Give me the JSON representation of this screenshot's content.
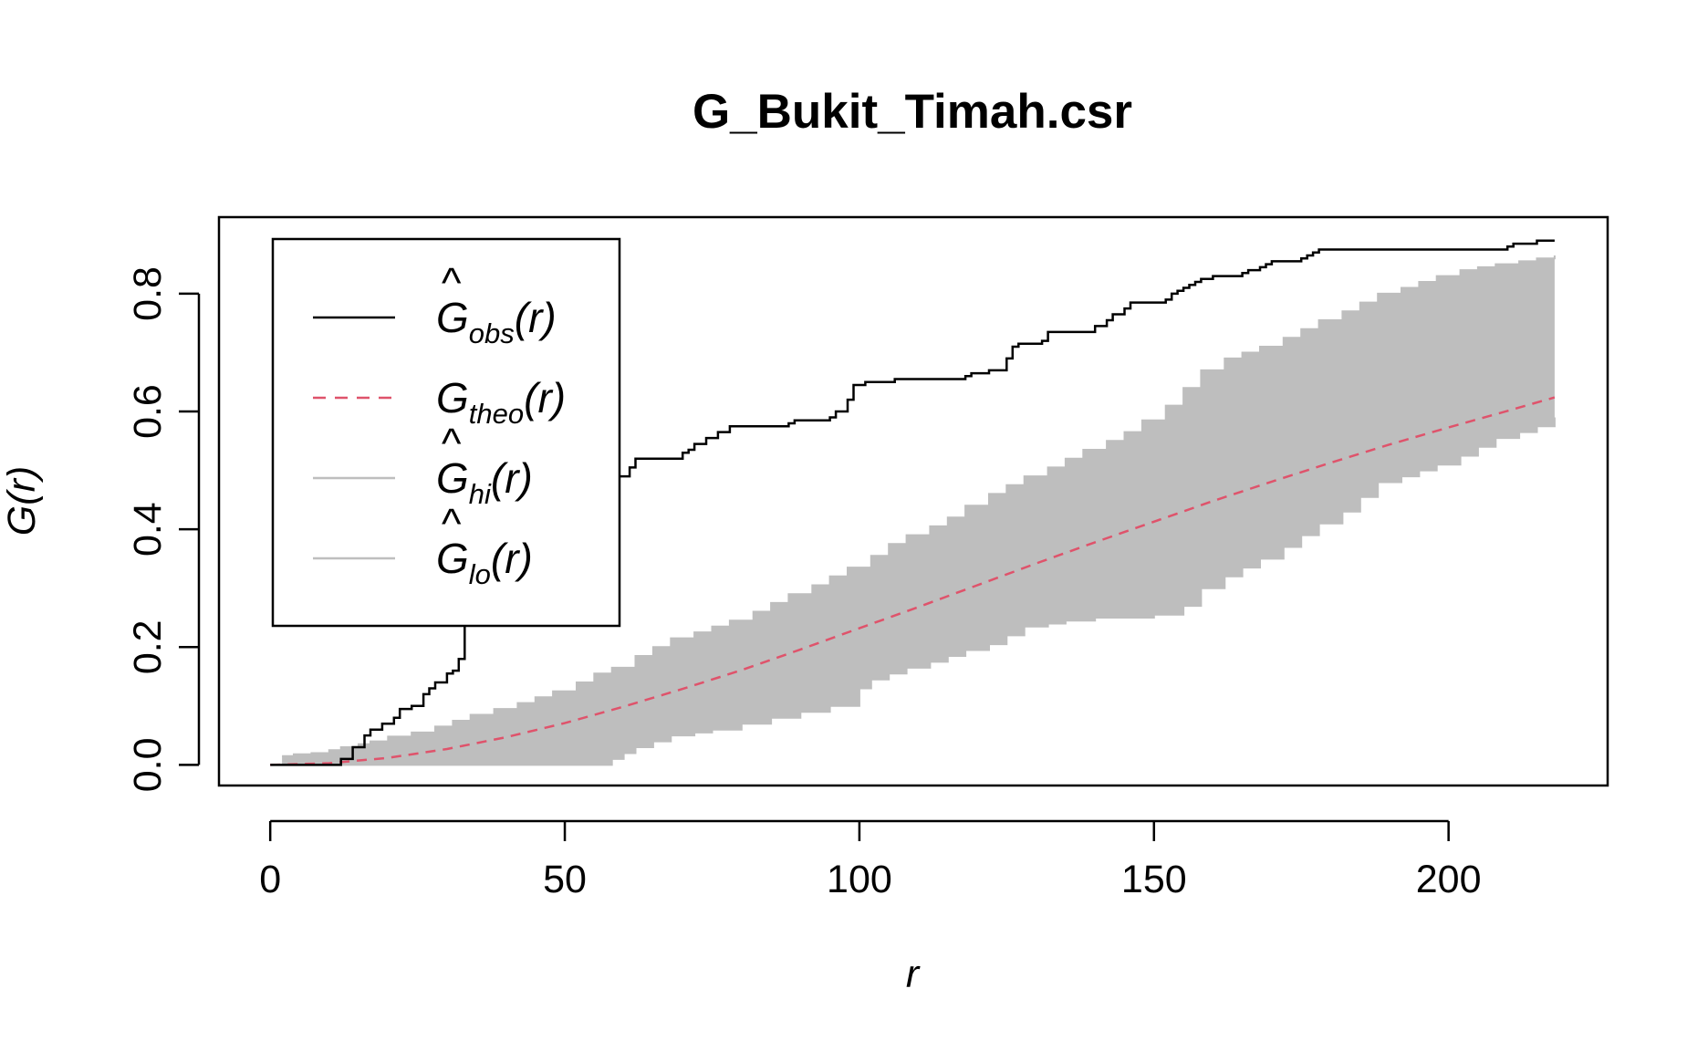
{
  "chart_data": {
    "type": "line",
    "title": "G_Bukit_Timah.csr",
    "xlabel": "r",
    "ylabel": "G(r)",
    "xlim": [
      -8.7,
      227
    ],
    "ylim": [
      -0.035,
      0.93
    ],
    "x_ticks": [
      0,
      50,
      100,
      150,
      200
    ],
    "y_ticks": [
      0.0,
      0.2,
      0.4,
      0.6,
      0.8
    ],
    "x_tick_labels": [
      "0",
      "50",
      "100",
      "150",
      "200"
    ],
    "y_tick_labels": [
      "0.0",
      "0.2",
      "0.4",
      "0.6",
      "0.8"
    ],
    "legend_position": "top-left",
    "legend": [
      {
        "key": "obs",
        "main": "G",
        "hat": "^",
        "sub": "obs",
        "arg": "(r)",
        "color": "#000000",
        "dash": "none"
      },
      {
        "key": "theo",
        "main": "G",
        "hat": "",
        "sub": "theo",
        "arg": "(r)",
        "color": "#DF536B",
        "dash": "14 10"
      },
      {
        "key": "hi",
        "main": "G",
        "hat": "^",
        "sub": "hi",
        "arg": "(r)",
        "color": "#BEBEBE",
        "dash": "none"
      },
      {
        "key": "lo",
        "main": "G",
        "hat": "^",
        "sub": "lo",
        "arg": "(r)",
        "color": "#BEBEBE",
        "dash": "none"
      }
    ],
    "colors": {
      "obs": "#000000",
      "theo": "#DF536B",
      "envelope": "#BEBEBE"
    },
    "series": [
      {
        "name": "Ĝobs(r)",
        "step": true,
        "x": [
          0,
          12,
          14,
          16,
          17,
          19,
          21,
          22,
          24,
          26,
          27,
          28,
          30,
          31,
          32,
          33,
          34,
          35,
          36,
          38,
          40,
          42,
          44,
          46,
          47,
          48,
          50,
          51,
          52,
          54,
          56,
          58,
          59,
          61,
          62,
          64,
          70,
          71,
          72,
          74,
          76,
          78,
          79,
          80,
          88,
          89,
          95,
          96,
          98,
          99,
          101,
          105,
          106,
          118,
          119,
          122,
          125,
          126,
          127,
          131,
          132,
          134,
          140,
          142,
          143,
          145,
          146,
          152,
          153,
          154,
          155,
          156,
          157,
          158,
          159,
          160,
          165,
          166,
          168,
          169,
          170,
          175,
          176,
          177,
          178,
          210,
          211,
          215,
          218
        ],
        "y": [
          0,
          0.01,
          0.03,
          0.05,
          0.06,
          0.07,
          0.08,
          0.095,
          0.1,
          0.12,
          0.13,
          0.14,
          0.155,
          0.16,
          0.18,
          0.24,
          0.25,
          0.27,
          0.29,
          0.3,
          0.31,
          0.325,
          0.335,
          0.345,
          0.36,
          0.365,
          0.37,
          0.38,
          0.4,
          0.43,
          0.44,
          0.47,
          0.49,
          0.505,
          0.52,
          0.52,
          0.53,
          0.535,
          0.545,
          0.555,
          0.565,
          0.575,
          0.575,
          0.575,
          0.58,
          0.585,
          0.59,
          0.6,
          0.62,
          0.645,
          0.65,
          0.65,
          0.655,
          0.66,
          0.665,
          0.67,
          0.69,
          0.71,
          0.715,
          0.72,
          0.735,
          0.735,
          0.745,
          0.755,
          0.765,
          0.775,
          0.785,
          0.79,
          0.8,
          0.805,
          0.81,
          0.815,
          0.82,
          0.825,
          0.825,
          0.83,
          0.835,
          0.84,
          0.845,
          0.85,
          0.855,
          0.86,
          0.865,
          0.87,
          0.875,
          0.88,
          0.885,
          0.89,
          0.89
        ]
      },
      {
        "name": "Gtheo(r)",
        "x": [
          0,
          10,
          20,
          30,
          40,
          50,
          60,
          70,
          80,
          90,
          100,
          110,
          120,
          130,
          140,
          150,
          160,
          170,
          180,
          190,
          200,
          210,
          218
        ],
        "y": [
          0,
          0.003,
          0.012,
          0.027,
          0.047,
          0.071,
          0.099,
          0.129,
          0.161,
          0.196,
          0.232,
          0.268,
          0.305,
          0.342,
          0.378,
          0.413,
          0.448,
          0.481,
          0.513,
          0.544,
          0.573,
          0.601,
          0.624
        ]
      },
      {
        "name": "Ĝhi(r)",
        "step": true,
        "x": [
          2,
          4,
          7,
          10,
          12,
          15,
          17,
          20,
          24,
          28,
          31,
          34,
          38,
          42,
          45,
          48,
          52,
          55,
          58,
          62,
          65,
          68,
          72,
          75,
          78,
          82,
          85,
          88,
          92,
          95,
          98,
          102,
          105,
          108,
          112,
          115,
          118,
          122,
          125,
          128,
          132,
          135,
          138,
          142,
          145,
          148,
          152,
          155,
          158,
          162,
          165,
          168,
          172,
          175,
          178,
          182,
          185,
          188,
          192,
          195,
          198,
          202,
          205,
          208,
          212,
          215,
          218
        ],
        "y": [
          0.015,
          0.018,
          0.02,
          0.025,
          0.03,
          0.035,
          0.04,
          0.048,
          0.055,
          0.065,
          0.075,
          0.085,
          0.095,
          0.105,
          0.115,
          0.125,
          0.14,
          0.155,
          0.165,
          0.185,
          0.2,
          0.215,
          0.225,
          0.235,
          0.245,
          0.26,
          0.275,
          0.29,
          0.305,
          0.32,
          0.335,
          0.355,
          0.375,
          0.39,
          0.405,
          0.42,
          0.44,
          0.46,
          0.475,
          0.49,
          0.505,
          0.52,
          0.535,
          0.55,
          0.565,
          0.585,
          0.61,
          0.64,
          0.67,
          0.69,
          0.7,
          0.71,
          0.725,
          0.74,
          0.755,
          0.77,
          0.785,
          0.8,
          0.81,
          0.82,
          0.83,
          0.84,
          0.845,
          0.85,
          0.855,
          0.86,
          0.865
        ]
      },
      {
        "name": "Ĝlo(r)",
        "step": true,
        "x": [
          2,
          58,
          60,
          62,
          65,
          68,
          72,
          75,
          80,
          85,
          90,
          95,
          100,
          102,
          105,
          108,
          112,
          115,
          118,
          122,
          125,
          128,
          132,
          135,
          140,
          145,
          150,
          155,
          158,
          162,
          165,
          168,
          172,
          175,
          178,
          182,
          185,
          188,
          192,
          195,
          198,
          202,
          205,
          208,
          212,
          215,
          218
        ],
        "y": [
          0,
          0.01,
          0.02,
          0.03,
          0.04,
          0.05,
          0.055,
          0.06,
          0.07,
          0.08,
          0.09,
          0.1,
          0.13,
          0.145,
          0.155,
          0.165,
          0.175,
          0.185,
          0.195,
          0.205,
          0.22,
          0.235,
          0.24,
          0.245,
          0.25,
          0.25,
          0.255,
          0.27,
          0.3,
          0.32,
          0.335,
          0.35,
          0.37,
          0.39,
          0.41,
          0.43,
          0.455,
          0.48,
          0.49,
          0.5,
          0.51,
          0.525,
          0.54,
          0.555,
          0.565,
          0.575,
          0.59
        ]
      }
    ]
  }
}
